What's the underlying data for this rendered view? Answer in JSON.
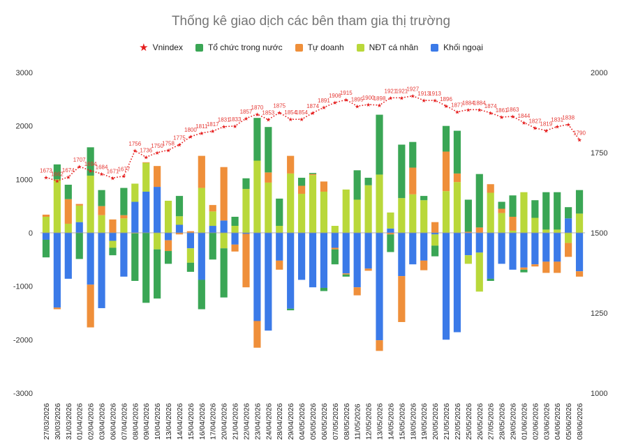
{
  "colors": {
    "vnindex": "#e51c1c",
    "to_chuc": "#3aa655",
    "tu_doanh": "#ef8f3a",
    "ndt_ca_nhan": "#b9d83a",
    "khoi_ngoai": "#3b7ae8"
  },
  "chart_data": {
    "type": "bar",
    "stacked": true,
    "title": "Thống kê giao dịch các bên tham gia thị trường",
    "legend_position": "top",
    "grid": false,
    "ylim": [
      -3000,
      3000
    ],
    "y_ticks": [
      "3000",
      "2000",
      "1000",
      "0",
      "-1000",
      "-2000",
      "-3000"
    ],
    "y2lim": [
      1000,
      2000
    ],
    "y2_ticks": [
      "2000",
      "1750",
      "1500",
      "1250",
      "1000"
    ],
    "categories": [
      "27/03/2026",
      "30/03/2026",
      "31/03/2026",
      "01/04/2026",
      "02/04/2026",
      "03/04/2026",
      "06/04/2026",
      "07/04/2026",
      "08/04/2026",
      "09/04/2026",
      "10/04/2026",
      "13/04/2026",
      "14/04/2026",
      "15/04/2026",
      "16/04/2026",
      "17/04/2026",
      "20/04/2026",
      "21/04/2026",
      "22/04/2026",
      "23/04/2026",
      "24/04/2026",
      "28/04/2026",
      "29/04/2026",
      "04/05/2026",
      "05/05/2026",
      "06/05/2026",
      "07/05/2026",
      "08/05/2026",
      "11/05/2026",
      "12/05/2026",
      "13/05/2026",
      "14/05/2026",
      "15/05/2026",
      "18/05/2026",
      "19/05/2026",
      "20/05/2026",
      "21/05/2026",
      "22/05/2026",
      "25/05/2026",
      "26/05/2026",
      "27/05/2026",
      "28/05/2026",
      "29/05/2026",
      "01/06/2026",
      "02/06/2026",
      "03/06/2026",
      "04/06/2026",
      "05/06/2026",
      "08/06/2026"
    ],
    "series": [
      {
        "name": "Vnindex",
        "type": "line",
        "axis": "right",
        "values": [
          1673,
          1662,
          1674,
          1707,
          1694,
          1684,
          1671,
          1677,
          1756,
          1736,
          1750,
          1758,
          1775,
          1800,
          1811,
          1817,
          1831,
          1833,
          1857,
          1870,
          1853,
          1875,
          1854,
          1854,
          1874,
          1891,
          1906,
          1915,
          1895,
          1900,
          1898,
          1921,
          1921,
          1927,
          1913,
          1913,
          1896,
          1877,
          1884,
          1884,
          1874,
          1861,
          1863,
          1844,
          1827,
          1819,
          1831,
          1838,
          1790
        ],
        "labels": [
          "1673",
          "1662",
          "1674",
          "1707",
          "1694",
          "1684",
          "1671",
          "1677",
          "1756",
          "1736",
          "1750",
          "1758",
          "1775",
          "1800",
          "1811",
          "1817",
          "1831",
          "1833",
          "1857",
          "1870",
          "1853",
          "1875",
          "1854",
          "1854",
          "1874",
          "1891",
          "1906",
          "1915",
          "1895",
          "1900",
          "1898",
          "1921",
          "1921",
          "1927",
          "1913",
          "1913",
          "1896",
          "1877",
          "1884",
          "1884",
          "1874",
          "1861",
          "1863",
          "1844",
          "1827",
          "1819",
          "1831",
          "1838",
          "1790"
        ]
      },
      {
        "name": "Tổ chức trong nước",
        "type": "bar",
        "values": [
          -330,
          280,
          270,
          -490,
          530,
          300,
          -140,
          510,
          -890,
          -1310,
          -920,
          -240,
          380,
          -170,
          -550,
          -500,
          -920,
          170,
          200,
          800,
          850,
          510,
          -30,
          150,
          20,
          -60,
          -280,
          -40,
          550,
          140,
          1120,
          -330,
          1000,
          480,
          80,
          -200,
          480,
          800,
          600,
          1000,
          -40,
          130,
          400,
          -50,
          330,
          700,
          700,
          210,
          440
        ],
        "labels": [
          "",
          "",
          "",
          "",
          "",
          "",
          "",
          "",
          "",
          "",
          "",
          "",
          "",
          "",
          "",
          "",
          "",
          "",
          "",
          "",
          "",
          "",
          "",
          "",
          "",
          "",
          "",
          "",
          "",
          "",
          "",
          "",
          "",
          "",
          "",
          "",
          "",
          "",
          "",
          "",
          "",
          "",
          "",
          "",
          "",
          "",
          "",
          "",
          ""
        ]
      },
      {
        "name": "Tự doanh",
        "type": "bar",
        "values": [
          40,
          -30,
          460,
          30,
          -800,
          170,
          250,
          60,
          -10,
          10,
          390,
          -200,
          -30,
          30,
          600,
          120,
          1000,
          -130,
          -1000,
          -500,
          190,
          -170,
          330,
          150,
          20,
          190,
          -30,
          -20,
          -150,
          -40,
          -200,
          -30,
          -860,
          500,
          -180,
          200,
          740,
          160,
          20,
          100,
          160,
          80,
          260,
          -40,
          -40,
          -210,
          -210,
          -260,
          -100
        ],
        "labels": [
          "",
          "",
          "",
          "",
          "",
          "",
          "",
          "",
          "",
          "",
          "",
          "",
          "",
          "",
          "",
          "",
          "",
          "",
          "",
          "",
          "",
          "",
          "",
          "",
          "",
          "",
          "",
          "",
          "",
          "",
          "",
          "",
          "",
          "",
          "",
          "",
          "",
          "",
          "",
          "",
          "",
          "",
          "",
          "",
          "",
          "",
          "",
          "",
          ""
        ]
      },
      {
        "name": "NĐT cá nhân",
        "type": "bar",
        "values": [
          300,
          1000,
          170,
          310,
          1070,
          330,
          -130,
          270,
          340,
          540,
          -310,
          600,
          160,
          -270,
          840,
          270,
          -290,
          130,
          820,
          1350,
          940,
          130,
          1110,
          730,
          1080,
          770,
          130,
          810,
          620,
          890,
          1090,
          300,
          650,
          720,
          610,
          -210,
          780,
          950,
          -160,
          -730,
          750,
          370,
          40,
          760,
          280,
          60,
          60,
          -190,
          360
        ],
        "labels": [
          "",
          "",
          "",
          "",
          "",
          "",
          "",
          "",
          "",
          "",
          "",
          "",
          "",
          "",
          "",
          "",
          "",
          "",
          "",
          "",
          "",
          "",
          "",
          "",
          "",
          "",
          "",
          "",
          "",
          "",
          "",
          "",
          "",
          "",
          "",
          "",
          "",
          "",
          "",
          "",
          "",
          "",
          "",
          "",
          "",
          "",
          "",
          "",
          ""
        ]
      },
      {
        "name": "Khối ngoại",
        "type": "bar",
        "values": [
          -130,
          -1400,
          -860,
          200,
          -970,
          -1410,
          -150,
          -820,
          580,
          770,
          860,
          -140,
          150,
          -290,
          -880,
          130,
          230,
          -220,
          -20,
          -1650,
          -1830,
          -520,
          -1420,
          -880,
          -1020,
          -1030,
          -280,
          -760,
          -1020,
          -670,
          -2010,
          80,
          -810,
          -590,
          -520,
          -30,
          -2000,
          -1860,
          -420,
          -370,
          -860,
          -580,
          -690,
          -650,
          -590,
          -540,
          -540,
          270,
          -720
        ],
        "labels": [
          "",
          "",
          "",
          "",
          "",
          "",
          "",
          "",
          "",
          "",
          "",
          "",
          "",
          "",
          "",
          "",
          "",
          "",
          "",
          "",
          "",
          "",
          "",
          "",
          "",
          "",
          "",
          "",
          "",
          "",
          "",
          "",
          "",
          "",
          "",
          "",
          "",
          "",
          "",
          "",
          "",
          "",
          "",
          "",
          "",
          "",
          "",
          "",
          ""
        ]
      }
    ]
  }
}
